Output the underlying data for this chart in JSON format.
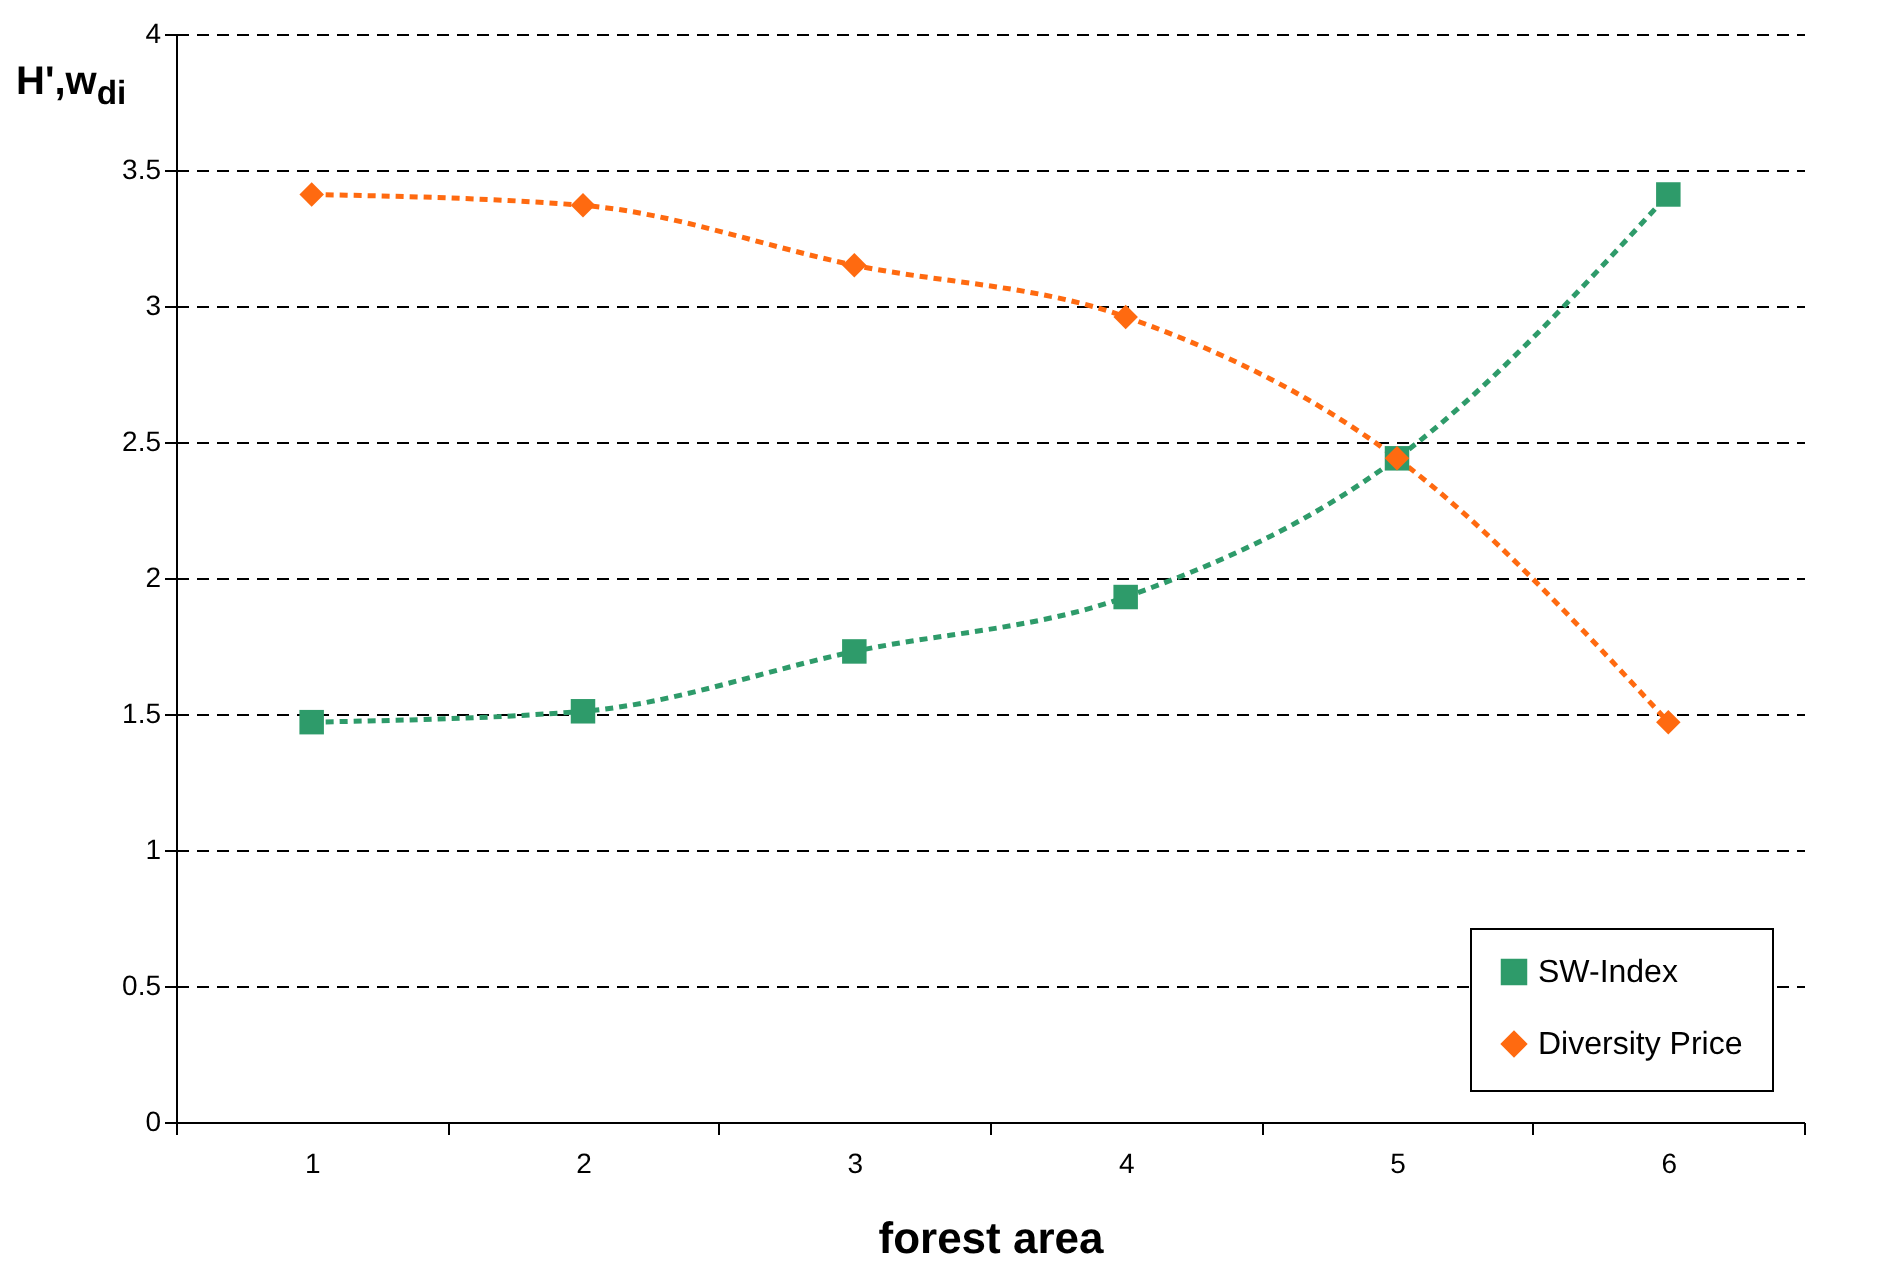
{
  "chart_data": {
    "type": "line",
    "xlabel": "forest area",
    "ylabel": "H',w$_{di}$",
    "categories": [
      "1",
      "2",
      "3",
      "4",
      "5",
      "6"
    ],
    "series": [
      {
        "name": "SW-Index",
        "color": "#2e9b6a",
        "marker": "square",
        "values": [
          1.47,
          1.51,
          1.73,
          1.93,
          2.44,
          3.41
        ]
      },
      {
        "name": "Diversity Price",
        "color": "#ff6a10",
        "marker": "diamond",
        "values": [
          3.41,
          3.37,
          3.15,
          2.96,
          2.44,
          1.47
        ]
      }
    ],
    "ylim": [
      0,
      4
    ],
    "yticks": [
      0,
      0.5,
      1,
      1.5,
      2,
      2.5,
      3,
      3.5,
      4
    ],
    "grid": "y",
    "legend": "bottom right",
    "line_style": "dashed"
  }
}
